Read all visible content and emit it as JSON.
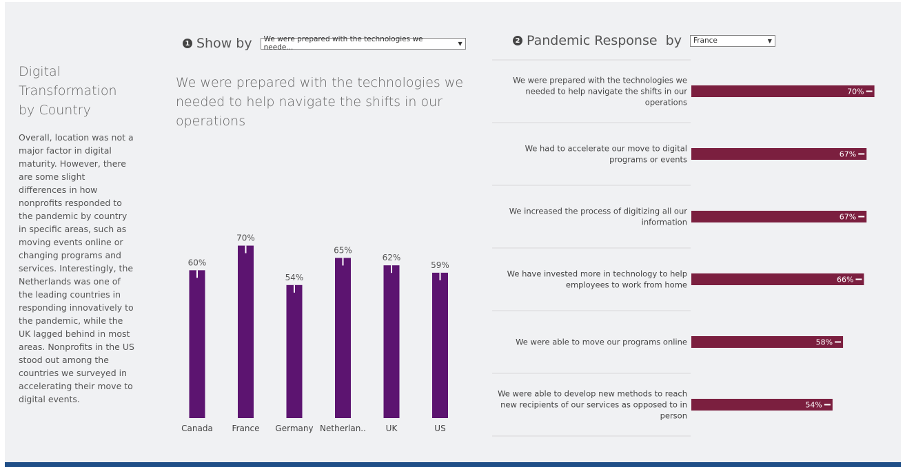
{
  "left_panel": {
    "title": "Digital Transformation by Country",
    "body": "Overall, location was not a major factor in digital maturity. However, there are some slight differences in how nonprofits responded to the pandemic by country in specific areas, such as moving events online or changing programs and services. Interestingly, the Netherlands was one of the leading countries in responding innovatively to the pandemic, while the UK lagged behind in most areas. Nonprofits in the US stood out among the countries we surveyed in accelerating their move to digital events."
  },
  "show_by": {
    "step": "1",
    "label": "Show by",
    "selected": "We were prepared with the technologies we neede..."
  },
  "pandemic_response": {
    "step": "2",
    "label": "Pandemic Response  by",
    "selected": "France"
  },
  "middle_title": "We were prepared with the technologies we needed to help navigate the shifts in our operations",
  "colors": {
    "country_bar": "#5c1470",
    "response_bar": "#7b1f3f",
    "error_tick": "#ffffff"
  },
  "chart_data": [
    {
      "type": "bar",
      "title": "We were prepared with the technologies we needed to help navigate the shifts in our operations",
      "categories": [
        "Canada",
        "France",
        "Germany",
        "Netherlan..",
        "UK",
        "US"
      ],
      "values": [
        60,
        70,
        54,
        65,
        62,
        59
      ],
      "labels": [
        "60%",
        "70%",
        "54%",
        "65%",
        "62%",
        "59%"
      ],
      "ylim": [
        0,
        100
      ],
      "grid": false
    },
    {
      "type": "bar",
      "orientation": "horizontal",
      "categories": [
        "We were prepared with the technologies we needed to help navigate the shifts in our operations",
        "We had to accelerate our move to digital programs or events",
        "We increased the process of digitizing all our information",
        "We have invested more in technology to help employees to work from home",
        "We were able to move our programs online",
        "We were able to develop new methods to reach new recipients of our services as opposed to in person"
      ],
      "category_lines": [
        [
          "We were prepared with the technologies we",
          "needed to help navigate the shifts in our",
          "operations"
        ],
        [
          "We had to accelerate our move to digital",
          "programs or events"
        ],
        [
          "We increased the process of digitizing all our",
          "information"
        ],
        [
          "We have invested more in technology to help",
          "employees to work from home"
        ],
        [
          "We were able to move our programs online"
        ],
        [
          "We were able to develop new methods to reach",
          "new recipients of our services as opposed to in",
          "person"
        ]
      ],
      "values": [
        70,
        67,
        67,
        66,
        58,
        54
      ],
      "labels": [
        "70%",
        "67%",
        "67%",
        "66%",
        "58%",
        "54%"
      ],
      "xlim": [
        0,
        73
      ]
    }
  ]
}
